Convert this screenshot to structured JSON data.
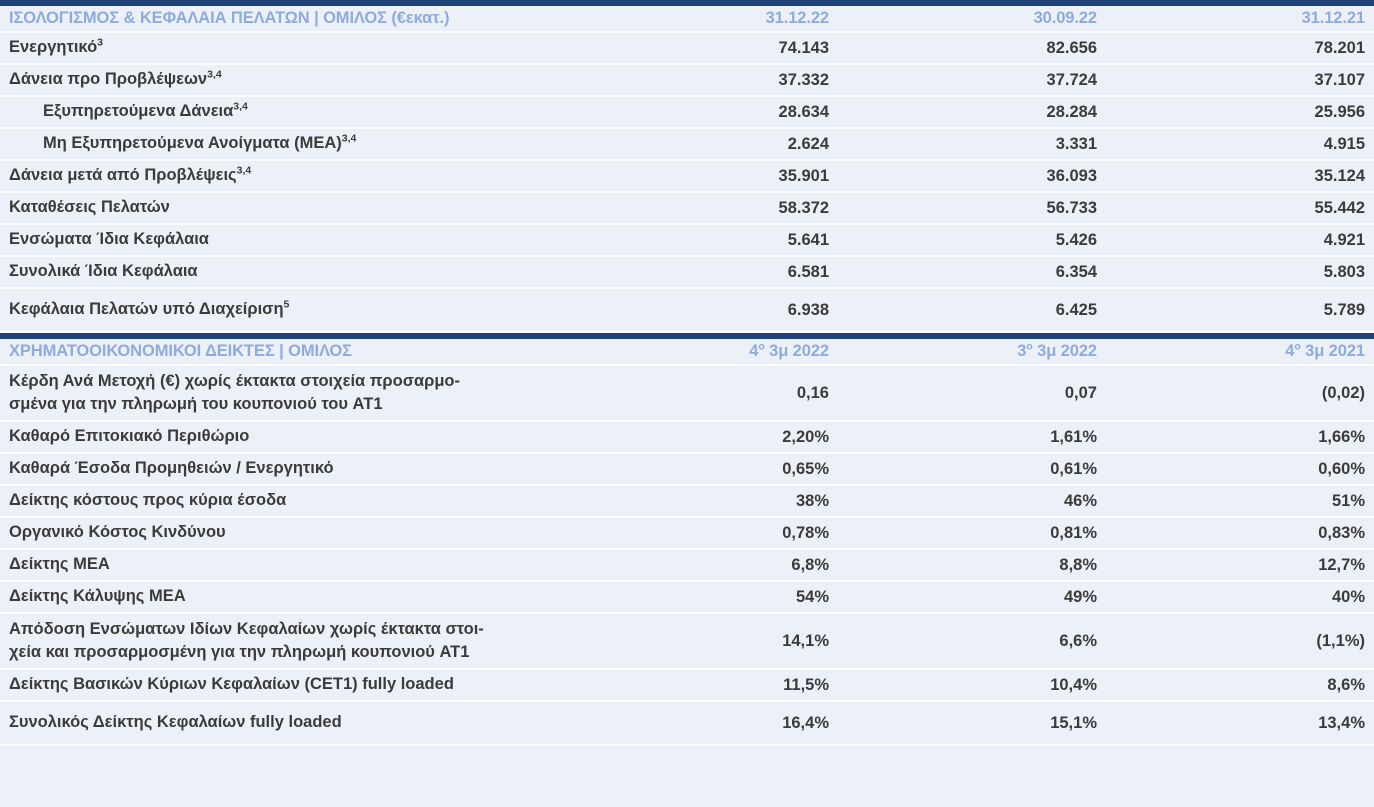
{
  "colors": {
    "navy_divider": "#1F4377",
    "section_header_text": "#8FAADC",
    "background": "#ECF1F8",
    "body_text": "#3B3B3B",
    "row_separator": "#FAFCFE"
  },
  "table": {
    "sections": [
      {
        "title": "ΙΣΟΛΟΓΙΣΜΟΣ & ΚΕΦΑΛΑΙΑ ΠΕΛΑΤΩΝ | ΟΜΙΛΟΣ (€εκατ.)",
        "columns": [
          {
            "pre": "31.12.22",
            "sup": "",
            "post": ""
          },
          {
            "pre": "30.09.22",
            "sup": "",
            "post": ""
          },
          {
            "pre": "31.12.21",
            "sup": "",
            "post": ""
          }
        ],
        "rows": [
          {
            "label": "Ενεργητικό",
            "sup": "3",
            "indent": false,
            "size": "normal",
            "values": [
              "74.143",
              "82.656",
              "78.201"
            ]
          },
          {
            "label": "Δάνεια προ Προβλέψεων",
            "sup": "3,4",
            "indent": false,
            "size": "normal",
            "values": [
              "37.332",
              "37.724",
              "37.107"
            ]
          },
          {
            "label": "Εξυπηρετούμενα Δάνεια",
            "sup": "3,4",
            "indent": true,
            "size": "normal",
            "values": [
              "28.634",
              "28.284",
              "25.956"
            ]
          },
          {
            "label": "Μη Εξυπηρετούμενα Ανοίγματα (ΜΕΑ)",
            "sup": "3,4",
            "indent": true,
            "size": "normal",
            "values": [
              "2.624",
              "3.331",
              "4.915"
            ]
          },
          {
            "label": "Δάνεια μετά από Προβλέψεις",
            "sup": "3,4",
            "indent": false,
            "size": "normal",
            "values": [
              "35.901",
              "36.093",
              "35.124"
            ]
          },
          {
            "label": "Καταθέσεις Πελατών",
            "sup": "",
            "indent": false,
            "size": "normal",
            "values": [
              "58.372",
              "56.733",
              "55.442"
            ]
          },
          {
            "label": "Ενσώματα Ίδια Κεφάλαια",
            "sup": "",
            "indent": false,
            "size": "normal",
            "values": [
              "5.641",
              "5.426",
              "4.921"
            ]
          },
          {
            "label": "Συνολικά Ίδια Κεφάλαια",
            "sup": "",
            "indent": false,
            "size": "normal",
            "values": [
              "6.581",
              "6.354",
              "5.803"
            ]
          },
          {
            "label": "Κεφάλαια Πελατών υπό Διαχείριση",
            "sup": "5",
            "indent": false,
            "size": "tall",
            "values": [
              "6.938",
              "6.425",
              "5.789"
            ]
          }
        ]
      },
      {
        "title": "ΧΡΗΜΑΤΟΟΙΚΟΝΟΜΙΚΟΙ ΔΕΙΚΤΕΣ | ΟΜΙΛΟΣ",
        "columns": [
          {
            "pre": "4",
            "sup": "ο",
            "post": " 3μ 2022"
          },
          {
            "pre": "3",
            "sup": "ο",
            "post": " 3μ 2022"
          },
          {
            "pre": "4",
            "sup": "ο",
            "post": " 3μ 2021"
          }
        ],
        "rows": [
          {
            "label": "Κέρδη Ανά Μετοχή (€) χωρίς έκτακτα στοιχεία προσαρμο-\nσμένα για την πληρωμή του κουπονιού του AT1",
            "sup": "",
            "indent": false,
            "size": "xtall",
            "values": [
              "0,16",
              "0,07",
              "(0,02)"
            ]
          },
          {
            "label": "Καθαρό Επιτοκιακό Περιθώριο",
            "sup": "",
            "indent": false,
            "size": "normal",
            "values": [
              "2,20%",
              "1,61%",
              "1,66%"
            ]
          },
          {
            "label": "Καθαρά Έσοδα Προμηθειών / Ενεργητικό",
            "sup": "",
            "indent": false,
            "size": "normal",
            "values": [
              "0,65%",
              "0,61%",
              "0,60%"
            ]
          },
          {
            "label": "Δείκτης κόστους προς κύρια έσοδα",
            "sup": "",
            "indent": false,
            "size": "normal",
            "values": [
              "38%",
              "46%",
              "51%"
            ]
          },
          {
            "label": "Οργανικό Κόστος Κινδύνου",
            "sup": "",
            "indent": false,
            "size": "normal",
            "values": [
              "0,78%",
              "0,81%",
              "0,83%"
            ]
          },
          {
            "label": "Δείκτης ΜΕΑ",
            "sup": "",
            "indent": false,
            "size": "normal",
            "values": [
              "6,8%",
              "8,8%",
              "12,7%"
            ]
          },
          {
            "label": "Δείκτης Κάλυψης ΜΕΑ",
            "sup": "",
            "indent": false,
            "size": "normal",
            "values": [
              "54%",
              "49%",
              "40%"
            ]
          },
          {
            "label": "Απόδοση Ενσώματων Ιδίων Κεφαλαίων χωρίς έκτακτα στοι-\nχεία και προσαρμοσμένη για την πληρωμή κουπονιού AT1",
            "sup": "",
            "indent": false,
            "size": "xtall",
            "values": [
              "14,1%",
              "6,6%",
              "(1,1%)"
            ]
          },
          {
            "label": "Δείκτης Βασικών Κύριων Κεφαλαίων (CET1) fully loaded",
            "sup": "",
            "indent": false,
            "size": "normal",
            "values": [
              "11,5%",
              "10,4%",
              "8,6%"
            ]
          },
          {
            "label": "Συνολικός Δείκτης Κεφαλαίων fully loaded",
            "sup": "",
            "indent": false,
            "size": "tall",
            "values": [
              "16,4%",
              "15,1%",
              "13,4%"
            ]
          }
        ]
      }
    ]
  }
}
